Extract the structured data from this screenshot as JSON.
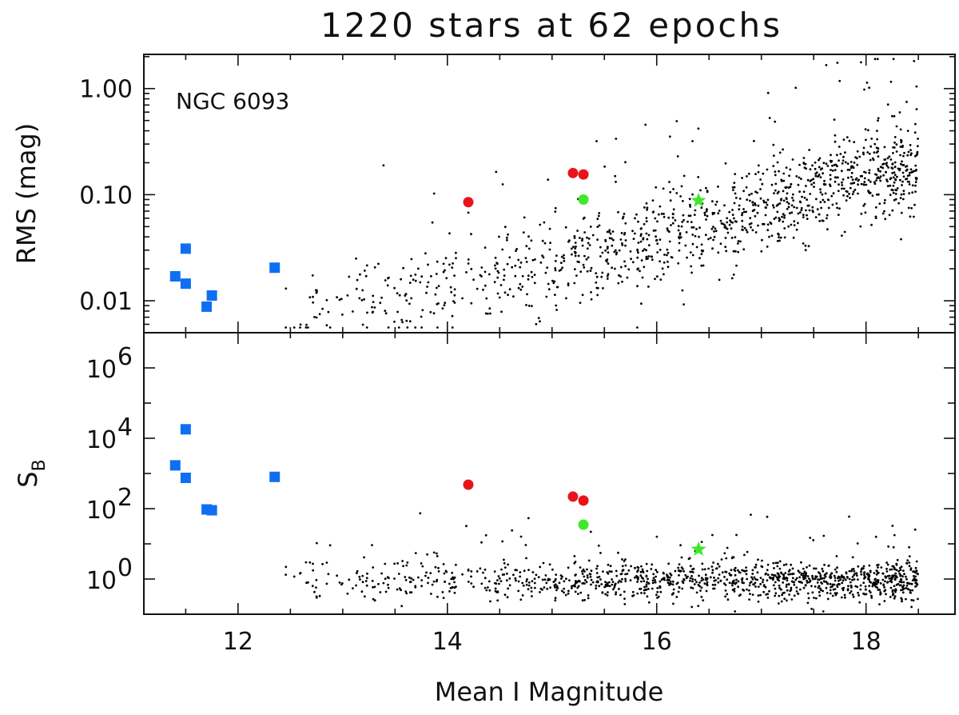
{
  "title": "1220 stars at 62 epochs",
  "colors": {
    "field": "#000000",
    "blue": "#0f6ff2",
    "red": "#e8141a",
    "green": "#3ee82a"
  },
  "chart_data": [
    {
      "type": "scatter",
      "panel": "top",
      "annotation": "NGC 6093",
      "ylabel": "RMS (mag)",
      "yscale": "log",
      "xlim": [
        11.1,
        18.85
      ],
      "ylim": [
        0.005,
        2.1
      ],
      "y_ticks": [
        0.01,
        0.1,
        1.0
      ],
      "y_tick_labels": [
        "0.01",
        "0.10",
        "1.00"
      ],
      "field_star_count": 1220,
      "field_star_trend": [
        [
          12.6,
          0.009
        ],
        [
          13.5,
          0.011
        ],
        [
          14.5,
          0.016
        ],
        [
          15.5,
          0.025
        ],
        [
          16.5,
          0.05
        ],
        [
          17.5,
          0.11
        ],
        [
          18.3,
          0.17
        ]
      ],
      "highlighted": [
        {
          "group": "blue-squares",
          "marker": "square",
          "color": "#0f6ff2",
          "points": [
            [
              11.4,
              0.017
            ],
            [
              11.5,
              0.031
            ],
            [
              11.5,
              0.0145
            ],
            [
              11.7,
              0.0088
            ],
            [
              11.75,
              0.0112
            ],
            [
              12.35,
              0.0205
            ]
          ]
        },
        {
          "group": "red-circles",
          "marker": "circle",
          "color": "#e8141a",
          "points": [
            [
              14.2,
              0.085
            ],
            [
              15.2,
              0.16
            ],
            [
              15.3,
              0.155
            ]
          ]
        },
        {
          "group": "green-circle",
          "marker": "circle",
          "color": "#3ee82a",
          "points": [
            [
              15.3,
              0.09
            ]
          ]
        },
        {
          "group": "green-star",
          "marker": "star",
          "color": "#3ee82a",
          "points": [
            [
              16.4,
              0.088
            ]
          ]
        }
      ]
    },
    {
      "type": "scatter",
      "panel": "bottom",
      "xlabel": "Mean I Magnitude",
      "ylabel": "S",
      "ylabel_subscript": "B",
      "yscale": "log",
      "xlim": [
        11.1,
        18.85
      ],
      "ylim": [
        0.1,
        10000000
      ],
      "x_ticks": [
        12,
        14,
        16,
        18
      ],
      "x_tick_labels": [
        "12",
        "14",
        "16",
        "18"
      ],
      "y_tick_labels": [
        {
          "base": "10",
          "exp": "0",
          "value": 1
        },
        {
          "base": "10",
          "exp": "2",
          "value": 100
        },
        {
          "base": "10",
          "exp": "4",
          "value": 10000
        },
        {
          "base": "10",
          "exp": "6",
          "value": 1000000
        }
      ],
      "highlighted": [
        {
          "group": "blue-squares",
          "marker": "square",
          "color": "#0f6ff2",
          "points": [
            [
              11.4,
              1700
            ],
            [
              11.5,
              18000
            ],
            [
              11.5,
              750
            ],
            [
              11.7,
              95
            ],
            [
              11.75,
              90
            ],
            [
              12.35,
              800
            ]
          ]
        },
        {
          "group": "red-circles",
          "marker": "circle",
          "color": "#e8141a",
          "points": [
            [
              14.2,
              480
            ],
            [
              15.2,
              220
            ],
            [
              15.3,
              170
            ]
          ]
        },
        {
          "group": "green-circle",
          "marker": "circle",
          "color": "#3ee82a",
          "points": [
            [
              15.3,
              35
            ]
          ]
        },
        {
          "group": "green-star",
          "marker": "star",
          "color": "#3ee82a",
          "points": [
            [
              16.4,
              7
            ]
          ]
        }
      ]
    }
  ]
}
